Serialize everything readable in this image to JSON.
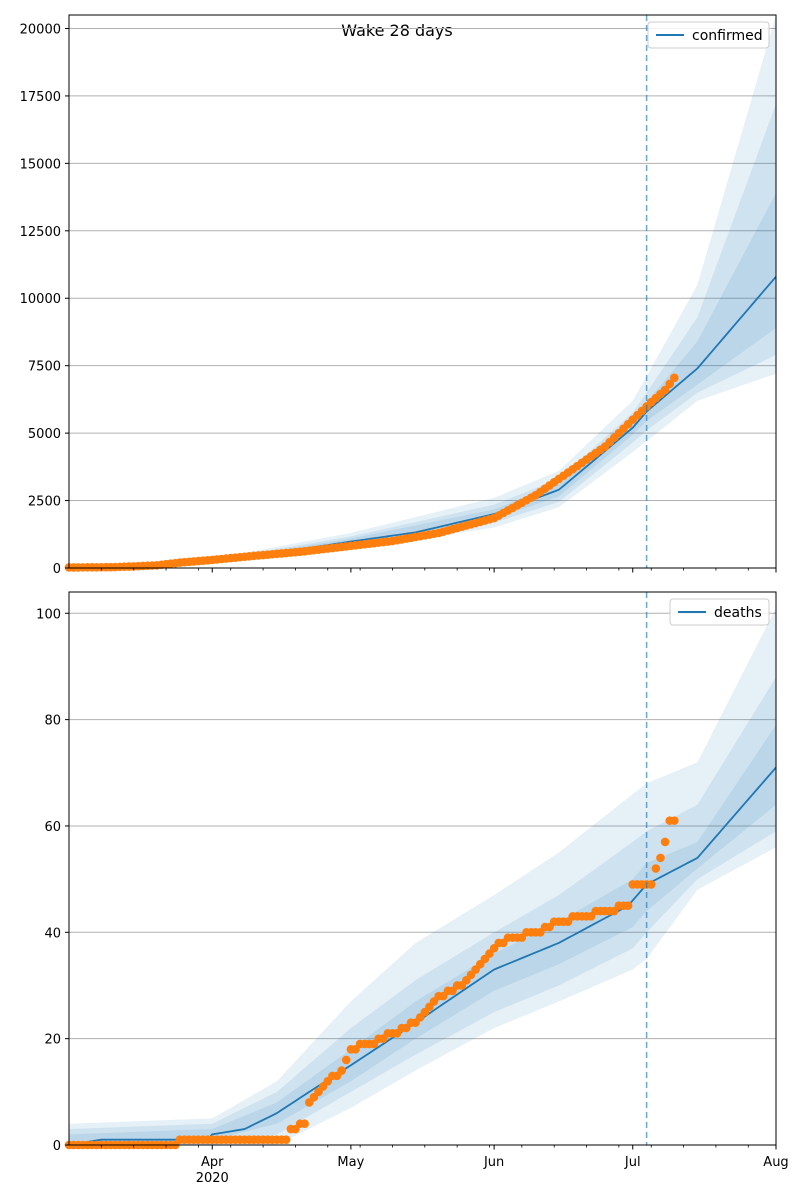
{
  "figure_title": "Wake 28 days",
  "colors": {
    "model": "#1f77b4",
    "observed": "#ff7f0e",
    "band": "#1f77b4",
    "grid": "#b0b0b0",
    "vline": "#1f77b4"
  },
  "x_axis": {
    "start_date": "2020-03-01",
    "end_date": "2020-08-01",
    "month_labels": [
      {
        "date": "2020-04-01",
        "label": "Apr",
        "sublabel": "2020"
      },
      {
        "date": "2020-05-01",
        "label": "May",
        "sublabel": ""
      },
      {
        "date": "2020-06-01",
        "label": "Jun",
        "sublabel": ""
      },
      {
        "date": "2020-07-01",
        "label": "Jul",
        "sublabel": ""
      },
      {
        "date": "2020-08-01",
        "label": "Aug",
        "sublabel": ""
      }
    ]
  },
  "forecast_start_date": "2020-07-04",
  "chart_data": [
    {
      "type": "line",
      "title": "Wake 28 days",
      "legend": [
        "confirmed"
      ],
      "legend_position": "top-right",
      "grid": "y",
      "ylim": [
        0,
        20500
      ],
      "yticks": [
        0,
        2500,
        5000,
        7500,
        10000,
        12500,
        15000,
        17500,
        20000
      ],
      "yticklabels": [
        "0",
        "2500",
        "5000",
        "7500",
        "10000",
        "12500",
        "15000",
        "17500",
        "20000"
      ],
      "model": {
        "name": "confirmed",
        "x": [
          "2020-03-01",
          "2020-03-15",
          "2020-04-01",
          "2020-04-15",
          "2020-05-01",
          "2020-05-15",
          "2020-06-01",
          "2020-06-15",
          "2020-07-01",
          "2020-07-04",
          "2020-07-15",
          "2020-08-01"
        ],
        "y": [
          20,
          80,
          250,
          560,
          980,
          1320,
          2000,
          2900,
          5200,
          5800,
          7400,
          10800
        ]
      },
      "bands": [
        {
          "level": "outer",
          "x": [
            "2020-03-01",
            "2020-04-01",
            "2020-05-01",
            "2020-06-01",
            "2020-06-15",
            "2020-07-01",
            "2020-07-04",
            "2020-07-15",
            "2020-08-01"
          ],
          "low": [
            0,
            180,
            700,
            1500,
            2250,
            4300,
            4700,
            6200,
            7200
          ],
          "high": [
            60,
            340,
            1300,
            2600,
            3600,
            6200,
            7100,
            10500,
            20500
          ]
        },
        {
          "level": "middle",
          "x": [
            "2020-03-01",
            "2020-04-01",
            "2020-05-01",
            "2020-06-01",
            "2020-06-15",
            "2020-07-01",
            "2020-07-04",
            "2020-07-15",
            "2020-08-01"
          ],
          "low": [
            5,
            200,
            790,
            1680,
            2450,
            4650,
            5100,
            6500,
            7900
          ],
          "high": [
            45,
            300,
            1170,
            2350,
            3300,
            5750,
            6500,
            9300,
            17200
          ]
        },
        {
          "level": "inner",
          "x": [
            "2020-03-01",
            "2020-04-01",
            "2020-05-01",
            "2020-06-01",
            "2020-06-15",
            "2020-07-01",
            "2020-07-04",
            "2020-07-15",
            "2020-08-01"
          ],
          "low": [
            10,
            220,
            870,
            1830,
            2650,
            4950,
            5450,
            6800,
            8900
          ],
          "high": [
            30,
            280,
            1090,
            2170,
            3100,
            5450,
            6150,
            8400,
            13900
          ]
        }
      ],
      "observed": {
        "x": [
          "2020-03-01",
          "2020-03-10",
          "2020-03-15",
          "2020-03-20",
          "2020-03-25",
          "2020-04-01",
          "2020-04-10",
          "2020-04-20",
          "2020-05-01",
          "2020-05-10",
          "2020-05-20",
          "2020-06-01",
          "2020-06-10",
          "2020-06-20",
          "2020-06-25",
          "2020-07-01",
          "2020-07-05",
          "2020-07-08",
          "2020-07-10"
        ],
        "y": [
          20,
          30,
          60,
          100,
          200,
          300,
          450,
          600,
          820,
          1000,
          1300,
          1850,
          2700,
          3900,
          4500,
          5500,
          6150,
          6600,
          7050
        ]
      }
    },
    {
      "type": "line",
      "title": "",
      "legend": [
        "deaths"
      ],
      "legend_position": "top-right",
      "grid": "y",
      "ylim": [
        0,
        104
      ],
      "yticks": [
        0,
        20,
        40,
        60,
        80,
        100
      ],
      "yticklabels": [
        "0",
        "20",
        "40",
        "60",
        "80",
        "100"
      ],
      "model": {
        "name": "deaths",
        "x": [
          "2020-03-01",
          "2020-03-08",
          "2020-03-31",
          "2020-04-01",
          "2020-04-08",
          "2020-04-15",
          "2020-04-22",
          "2020-05-01",
          "2020-05-15",
          "2020-06-01",
          "2020-06-15",
          "2020-06-30",
          "2020-07-04",
          "2020-07-15",
          "2020-08-01"
        ],
        "y": [
          0,
          1,
          1,
          2,
          3,
          6,
          10,
          15,
          23,
          33,
          38,
          45,
          49,
          54,
          71
        ]
      },
      "bands": [
        {
          "level": "outer",
          "x": [
            "2020-03-01",
            "2020-04-01",
            "2020-04-15",
            "2020-05-01",
            "2020-05-15",
            "2020-06-01",
            "2020-06-15",
            "2020-07-01",
            "2020-07-04",
            "2020-07-15",
            "2020-08-01"
          ],
          "low": [
            0,
            0,
            0,
            7,
            14,
            22,
            27,
            33,
            35,
            48,
            56
          ],
          "high": [
            4,
            5,
            12,
            27,
            38,
            47,
            55,
            66,
            68,
            72,
            101
          ]
        },
        {
          "level": "middle",
          "x": [
            "2020-03-01",
            "2020-04-01",
            "2020-04-15",
            "2020-05-01",
            "2020-05-15",
            "2020-06-01",
            "2020-06-15",
            "2020-07-01",
            "2020-07-04",
            "2020-07-15",
            "2020-08-01"
          ],
          "low": [
            0,
            0,
            2,
            10,
            17,
            25,
            30,
            37,
            40,
            50,
            59
          ],
          "high": [
            3,
            4,
            10,
            22,
            31,
            40,
            47,
            57,
            59,
            64,
            88
          ]
        },
        {
          "level": "inner",
          "x": [
            "2020-03-01",
            "2020-04-01",
            "2020-04-15",
            "2020-05-01",
            "2020-05-15",
            "2020-06-01",
            "2020-06-15",
            "2020-07-01",
            "2020-07-04",
            "2020-07-15",
            "2020-08-01"
          ],
          "low": [
            0,
            1,
            4,
            12,
            20,
            29,
            34,
            41,
            44,
            52,
            64
          ],
          "high": [
            2,
            3,
            8,
            18,
            27,
            36,
            42,
            50,
            53,
            57,
            79
          ]
        }
      ],
      "observed": {
        "x": [
          "2020-03-01",
          "2020-04-17",
          "2020-04-18",
          "2020-04-21",
          "2020-04-22",
          "2020-04-25",
          "2020-04-29",
          "2020-05-01",
          "2020-05-05",
          "2020-05-10",
          "2020-05-15",
          "2020-05-20",
          "2020-05-25",
          "2020-05-28",
          "2020-06-01",
          "2020-06-05",
          "2020-06-10",
          "2020-06-15",
          "2020-06-20",
          "2020-06-26",
          "2020-06-30",
          "2020-07-01",
          "2020-07-05",
          "2020-07-06",
          "2020-07-07",
          "2020-07-08",
          "2020-07-09",
          "2020-07-10"
        ],
        "y": [
          0,
          1,
          3,
          4,
          8,
          11,
          14,
          18,
          19,
          21,
          23,
          28,
          30,
          33,
          37,
          39,
          40,
          42,
          43,
          44,
          45,
          49,
          49,
          52,
          54,
          57,
          61,
          61
        ]
      }
    }
  ]
}
